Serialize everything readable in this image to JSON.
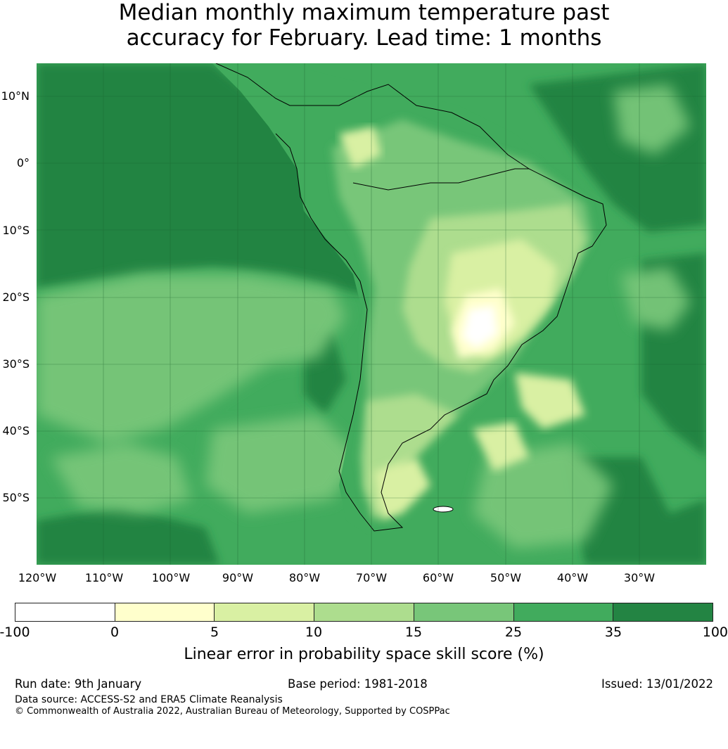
{
  "title": {
    "line1": "Median monthly maximum temperature past",
    "line2": "accuracy for February. Lead time: 1 months"
  },
  "map": {
    "lat_labels": [
      "10°N",
      "0°",
      "10°S",
      "20°S",
      "30°S",
      "40°S",
      "50°S"
    ],
    "lon_labels": [
      "120°W",
      "110°W",
      "100°W",
      "90°W",
      "80°W",
      "70°W",
      "60°W",
      "50°W",
      "40°W",
      "30°W"
    ],
    "ocean_color": "#3a9d57",
    "dark_color": "#228845"
  },
  "colorbar": {
    "ticks": [
      "-100",
      "0",
      "5",
      "10",
      "15",
      "25",
      "35",
      "100"
    ],
    "colors": [
      "#ffffff",
      "#ffffcc",
      "#d9f0a3",
      "#addd8e",
      "#78c679",
      "#41ab5d",
      "#238443"
    ],
    "label": "Linear error in probability space skill score (%)"
  },
  "footer": {
    "run_date": "Run date: 9th January",
    "base_period": "Base period: 1981-2018",
    "issued": "Issued: 13/01/2022",
    "data_source": "Data source: ACCESS-S2 and ERA5 Climate Reanalysis",
    "copyright": "© Commonwealth of Australia 2022, Australian Bureau of Meteorology, Supported by COSPPac"
  }
}
